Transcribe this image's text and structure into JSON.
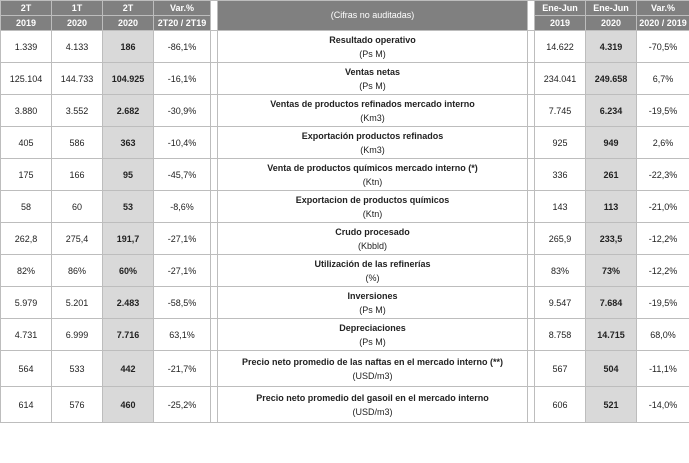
{
  "header": {
    "c1": [
      "2T",
      "2019"
    ],
    "c2": [
      "1T",
      "2020"
    ],
    "c3": [
      "2T",
      "2020"
    ],
    "c4": [
      "Var.%",
      "2T20 / 2T19"
    ],
    "c5": "(Cifras no auditadas)",
    "c6": [
      "Ene-Jun",
      "2019"
    ],
    "c7": [
      "Ene-Jun",
      "2020"
    ],
    "c8": [
      "Var.%",
      "2020 / 2019"
    ]
  },
  "rows": [
    {
      "q2_19": "1.339",
      "q1_20": "4.133",
      "q2_20": "186",
      "var_q": "-86,1%",
      "label": "Resultado operativo",
      "unit": "(Ps M)",
      "h1_19": "14.622",
      "h1_20": "4.319",
      "var_h": "-70,5%"
    },
    {
      "q2_19": "125.104",
      "q1_20": "144.733",
      "q2_20": "104.925",
      "var_q": "-16,1%",
      "label": "Ventas netas",
      "unit": "(Ps M)",
      "h1_19": "234.041",
      "h1_20": "249.658",
      "var_h": "6,7%"
    },
    {
      "q2_19": "3.880",
      "q1_20": "3.552",
      "q2_20": "2.682",
      "var_q": "-30,9%",
      "label": "Ventas de productos refinados mercado interno",
      "unit": "(Km3)",
      "h1_19": "7.745",
      "h1_20": "6.234",
      "var_h": "-19,5%"
    },
    {
      "q2_19": "405",
      "q1_20": "586",
      "q2_20": "363",
      "var_q": "-10,4%",
      "label": "Exportación productos refinados",
      "unit": "(Km3)",
      "h1_19": "925",
      "h1_20": "949",
      "var_h": "2,6%"
    },
    {
      "q2_19": "175",
      "q1_20": "166",
      "q2_20": "95",
      "var_q": "-45,7%",
      "label": "Venta de productos químicos mercado interno (*)",
      "unit": "(Ktn)",
      "h1_19": "336",
      "h1_20": "261",
      "var_h": "-22,3%"
    },
    {
      "q2_19": "58",
      "q1_20": "60",
      "q2_20": "53",
      "var_q": "-8,6%",
      "label": "Exportacion de productos químicos",
      "unit": "(Ktn)",
      "h1_19": "143",
      "h1_20": "113",
      "var_h": "-21,0%"
    },
    {
      "q2_19": "262,8",
      "q1_20": "275,4",
      "q2_20": "191,7",
      "var_q": "-27,1%",
      "label": "Crudo procesado",
      "unit": "(Kbbld)",
      "h1_19": "265,9",
      "h1_20": "233,5",
      "var_h": "-12,2%"
    },
    {
      "q2_19": "82%",
      "q1_20": "86%",
      "q2_20": "60%",
      "var_q": "-27,1%",
      "label": "Utilización de las refinerías",
      "unit": "(%)",
      "h1_19": "83%",
      "h1_20": "73%",
      "var_h": "-12,2%"
    },
    {
      "q2_19": "5.979",
      "q1_20": "5.201",
      "q2_20": "2.483",
      "var_q": "-58,5%",
      "label": "Inversiones",
      "unit": "(Ps M)",
      "h1_19": "9.547",
      "h1_20": "7.684",
      "var_h": "-19,5%"
    },
    {
      "q2_19": "4.731",
      "q1_20": "6.999",
      "q2_20": "7.716",
      "var_q": "63,1%",
      "label": "Depreciaciones",
      "unit": "(Ps M)",
      "h1_19": "8.758",
      "h1_20": "14.715",
      "var_h": "68,0%"
    },
    {
      "q2_19": "564",
      "q1_20": "533",
      "q2_20": "442",
      "var_q": "-21,7%",
      "label": "Precio neto promedio de las naftas en el mercado interno (**)",
      "unit": "(USD/m3)",
      "h1_19": "567",
      "h1_20": "504",
      "var_h": "-11,1%"
    },
    {
      "q2_19": "614",
      "q1_20": "576",
      "q2_20": "460",
      "var_q": "-25,2%",
      "label": "Precio neto promedio del gasoil en el mercado interno",
      "unit": "(USD/m3)",
      "h1_19": "606",
      "h1_20": "521",
      "var_h": "-14,0%"
    }
  ]
}
